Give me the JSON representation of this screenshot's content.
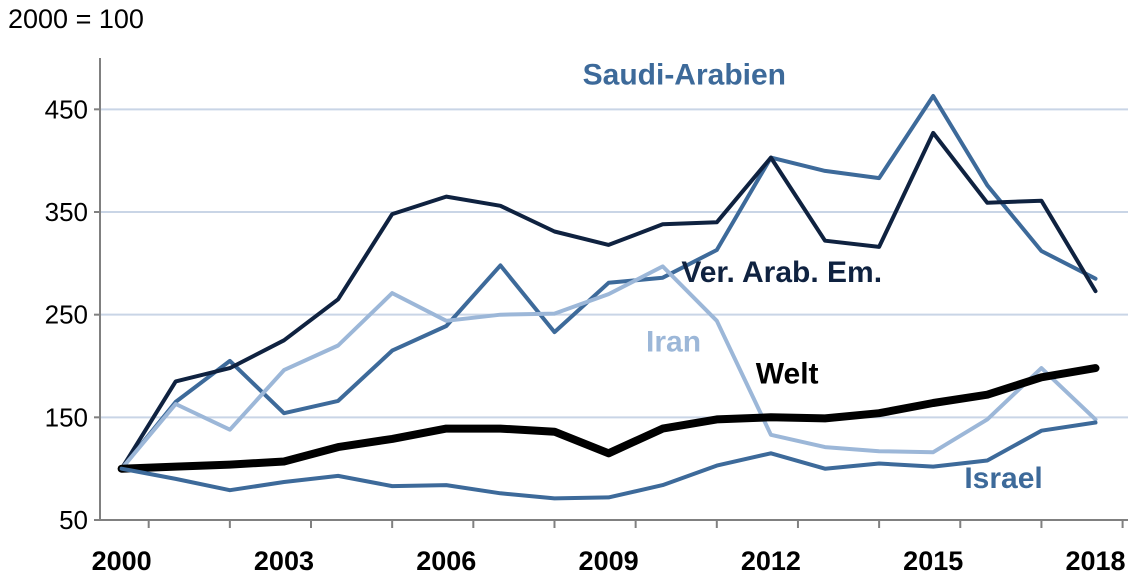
{
  "unit_label": "2000 = 100",
  "chart_data": {
    "type": "line",
    "title": "",
    "xlabel": "",
    "ylabel": "2000 = 100",
    "x": [
      2000,
      2001,
      2002,
      2003,
      2004,
      2005,
      2006,
      2007,
      2008,
      2009,
      2010,
      2011,
      2012,
      2013,
      2014,
      2015,
      2016,
      2017,
      2018
    ],
    "xlim": [
      1999.6,
      2018.6
    ],
    "ylim": [
      50,
      500
    ],
    "yticks": [
      50,
      150,
      250,
      350,
      450
    ],
    "xtick_labels": [
      "2000",
      "2003",
      "2006",
      "2009",
      "2012",
      "2015",
      "2018"
    ],
    "grid": true,
    "series": [
      {
        "name": "Saudi-Arabien",
        "color": "#3d6a9a",
        "width": 4,
        "values": [
          100,
          165,
          205,
          154,
          166,
          215,
          239,
          298,
          233,
          281,
          286,
          313,
          403,
          390,
          383,
          463,
          376,
          312,
          285
        ]
      },
      {
        "name": "Ver. Arab. Em.",
        "color": "#0f2240",
        "width": 4,
        "values": [
          100,
          185,
          198,
          225,
          265,
          348,
          365,
          356,
          331,
          318,
          338,
          340,
          403,
          322,
          316,
          427,
          359,
          361,
          273
        ]
      },
      {
        "name": "Iran",
        "color": "#9cb7d8",
        "width": 4,
        "values": [
          100,
          163,
          138,
          196,
          220,
          271,
          244,
          250,
          251,
          270,
          297,
          244,
          133,
          121,
          117,
          116,
          148,
          198,
          148
        ]
      },
      {
        "name": "Welt",
        "color": "#000000",
        "width": 8,
        "values": [
          100,
          102,
          104,
          107,
          121,
          129,
          139,
          139,
          136,
          115,
          139,
          148,
          150,
          149,
          154,
          164,
          172,
          189,
          198
        ]
      },
      {
        "name": "Israel",
        "color": "#3d6a9a",
        "width": 4,
        "values": [
          100,
          90,
          79,
          87,
          93,
          83,
          84,
          76,
          71,
          72,
          84,
          103,
          115,
          100,
          105,
          102,
          108,
          137,
          145
        ]
      }
    ],
    "labels": [
      {
        "text": "Saudi-Arabien",
        "series": "Saudi-Arabien",
        "x": 2010.4,
        "y": 474
      },
      {
        "text": "Ver. Arab. Em.",
        "series": "Ver. Arab. Em.",
        "x": 2012.2,
        "y": 282
      },
      {
        "text": "Iran",
        "series": "Iran",
        "x": 2010.2,
        "y": 214
      },
      {
        "text": "Welt",
        "series": "Welt",
        "x": 2012.3,
        "y": 183
      },
      {
        "text": "Israel",
        "series": "Israel",
        "x": 2016.3,
        "y": 81
      }
    ]
  }
}
